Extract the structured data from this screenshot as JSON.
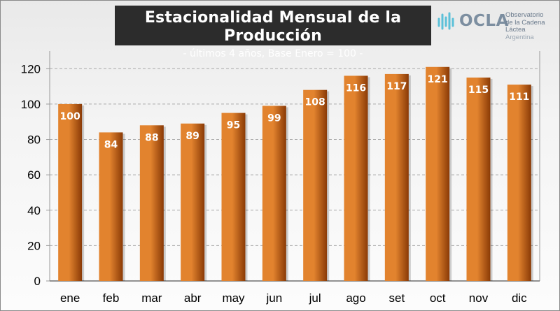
{
  "logo": {
    "name": "OCLA",
    "line1": "Observatorio",
    "line2": "de la Cadena Láctea",
    "line3": "Argentina"
  },
  "colors": {
    "bar_light": "#e2832e",
    "bar_dark": "#8a3a06",
    "title_bg": "#2c2c2c"
  },
  "chart_data": {
    "type": "bar",
    "title": "Estacionalidad Mensual de la Producción",
    "subtitle": "- últimos 4 años, Base Enero = 100 -",
    "categories": [
      "ene",
      "feb",
      "mar",
      "abr",
      "may",
      "jun",
      "jul",
      "ago",
      "set",
      "oct",
      "nov",
      "dic"
    ],
    "values": [
      100,
      84,
      88,
      89,
      95,
      99,
      108,
      116,
      117,
      121,
      115,
      111
    ],
    "ylim": [
      0,
      130
    ],
    "yticks": [
      0,
      20,
      40,
      60,
      80,
      100,
      120
    ],
    "grid": true,
    "legend": "none"
  }
}
